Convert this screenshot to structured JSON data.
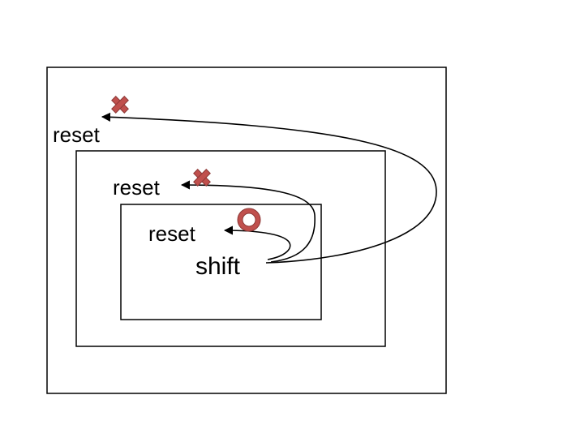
{
  "labels": {
    "outer_reset": "reset",
    "middle_reset": "reset",
    "inner_reset": "reset",
    "shift": "shift"
  },
  "markers": {
    "outer": {
      "symbol": "cross-icon",
      "meaning": "not allowed"
    },
    "middle": {
      "symbol": "cross-icon",
      "meaning": "not allowed"
    },
    "inner": {
      "symbol": "circle-icon",
      "meaning": "allowed"
    }
  },
  "colors": {
    "marker_fill": "#c0504d",
    "marker_stroke": "#8c3836",
    "line": "#000000",
    "background": "#ffffff"
  }
}
